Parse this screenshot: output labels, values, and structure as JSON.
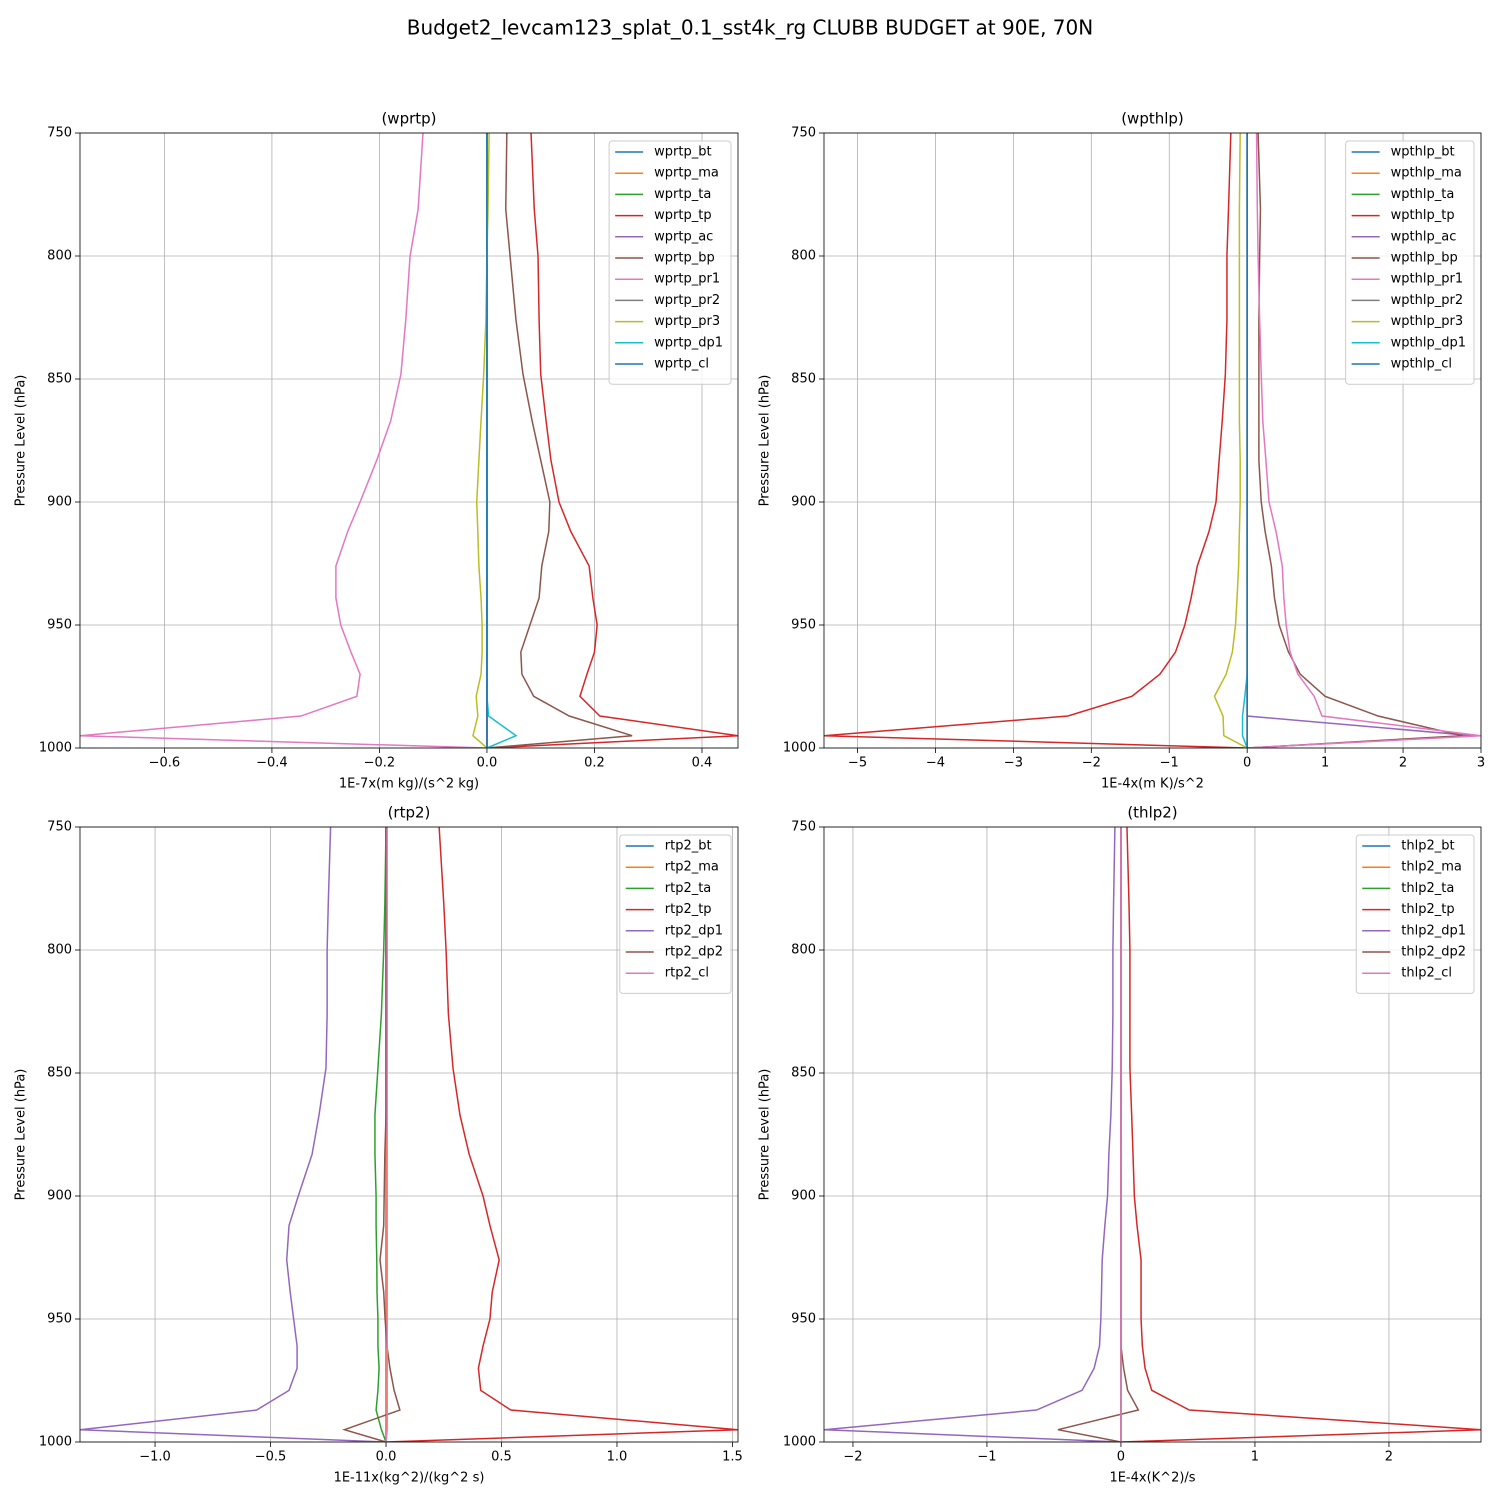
{
  "title": "Budget2_levcam123_splat_0.1_sst4k_rg CLUBB BUDGET at 90E, 70N",
  "chart_data": [
    {
      "type": "line",
      "title": "(wprtp)",
      "xlabel": "1E-7x(m kg)/(s^2 kg)",
      "ylabel": "Pressure Level (hPa)",
      "y": [
        750,
        781,
        800,
        826,
        848,
        867,
        883,
        900,
        912,
        926,
        939,
        950,
        961,
        970,
        979,
        987,
        995,
        1000
      ],
      "xlim": [
        -0.757,
        0.467
      ],
      "ylim": [
        750,
        1000
      ],
      "y_inverted": true,
      "grid": true,
      "legend": "upper right",
      "xticks": [
        {
          "value": -0.6,
          "label": "−0.6"
        },
        {
          "value": -0.4,
          "label": "−0.4"
        },
        {
          "value": -0.2,
          "label": "−0.2"
        },
        {
          "value": 0,
          "label": "0.0"
        },
        0.2,
        0.4
      ],
      "yticks": [
        750,
        800,
        850,
        900,
        950,
        1000
      ],
      "series": [
        {
          "name": "wprtp_bt",
          "color": "#1f77b4",
          "values": [
            0,
            0,
            0,
            0,
            0,
            0,
            0,
            0,
            0,
            0,
            0,
            0,
            0,
            0,
            0,
            0,
            0,
            0
          ]
        },
        {
          "name": "wprtp_ma",
          "color": "#ff7f0e",
          "values": [
            0,
            0,
            0,
            0,
            0,
            0,
            0,
            0,
            0,
            0,
            0,
            0,
            0,
            0,
            0,
            0,
            0,
            0
          ]
        },
        {
          "name": "wprtp_ta",
          "color": "#2ca02c",
          "values": [
            0,
            0,
            0,
            0,
            0,
            0,
            0,
            0,
            0,
            0,
            0,
            0,
            0,
            0,
            0,
            0,
            0,
            0
          ]
        },
        {
          "name": "wprtp_tp",
          "color": "#d62728",
          "values": [
            0.082,
            0.088,
            0.095,
            0.097,
            0.1,
            0.11,
            0.119,
            0.134,
            0.156,
            0.19,
            0.197,
            0.205,
            0.2,
            0.186,
            0.173,
            0.21,
            0.467,
            0
          ]
        },
        {
          "name": "wprtp_ac",
          "color": "#9467bd",
          "values": [
            0,
            0,
            0,
            0,
            0,
            0,
            0,
            0,
            0,
            0,
            0,
            0,
            0,
            0,
            0,
            0,
            0,
            0
          ]
        },
        {
          "name": "wprtp_bp",
          "color": "#8c564b",
          "values": [
            0.037,
            0.035,
            0.043,
            0.054,
            0.067,
            0.084,
            0.1,
            0.117,
            0.115,
            0.102,
            0.097,
            0.08,
            0.063,
            0.065,
            0.087,
            0.153,
            0.27,
            0
          ]
        },
        {
          "name": "wprtp_pr1",
          "color": "#e377c2",
          "values": [
            -0.119,
            -0.128,
            -0.143,
            -0.151,
            -0.16,
            -0.179,
            -0.205,
            -0.236,
            -0.259,
            -0.281,
            -0.281,
            -0.272,
            -0.253,
            -0.236,
            -0.242,
            -0.346,
            -0.757,
            0
          ]
        },
        {
          "name": "wprtp_pr2",
          "color": "#7f7f7f",
          "values": [
            0,
            0,
            0,
            0,
            0,
            0,
            0,
            0,
            0,
            0,
            0,
            0,
            0,
            0,
            0,
            0,
            0,
            0
          ]
        },
        {
          "name": "wprtp_pr3",
          "color": "#bcbd22",
          "values": [
            0.004,
            0.002,
            0,
            -0.002,
            -0.006,
            -0.011,
            -0.015,
            -0.019,
            -0.017,
            -0.015,
            -0.011,
            -0.009,
            -0.009,
            -0.011,
            -0.02,
            -0.017,
            -0.026,
            0
          ]
        },
        {
          "name": "wprtp_dp1",
          "color": "#17becf",
          "values": [
            0,
            0,
            0,
            0,
            0,
            0,
            0,
            0,
            0,
            0,
            0,
            0,
            0,
            0,
            0,
            0.003,
            0.054,
            0
          ]
        },
        {
          "name": "wprtp_cl",
          "color": "#1f77b4",
          "values": [
            0,
            0,
            0,
            0,
            0,
            0,
            0,
            0,
            0,
            0,
            0,
            0,
            0,
            0,
            0,
            0,
            0,
            0
          ]
        }
      ]
    },
    {
      "type": "line",
      "title": "(wpthlp)",
      "xlabel": "1E-4x(m K)/s^2",
      "ylabel": "Pressure Level (hPa)",
      "y": [
        750,
        781,
        800,
        826,
        848,
        867,
        883,
        900,
        912,
        926,
        939,
        950,
        961,
        970,
        979,
        987,
        995,
        1000
      ],
      "xlim": [
        -5.43,
        3.0
      ],
      "ylim": [
        750,
        1000
      ],
      "y_inverted": true,
      "grid": true,
      "legend": "upper right",
      "xticks": [
        {
          "value": -5,
          "label": "−5"
        },
        {
          "value": -4,
          "label": "−4"
        },
        {
          "value": -3,
          "label": "−3"
        },
        {
          "value": -2,
          "label": "−2"
        },
        {
          "value": -1,
          "label": "−1"
        },
        0,
        1,
        2,
        3
      ],
      "yticks": [
        750,
        800,
        850,
        900,
        950,
        1000
      ],
      "series": [
        {
          "name": "wpthlp_bt",
          "color": "#1f77b4",
          "values": [
            0,
            0,
            0,
            0,
            0,
            0,
            0,
            0,
            0,
            0,
            0,
            0,
            0,
            0,
            0,
            0,
            0,
            0
          ]
        },
        {
          "name": "wpthlp_ma",
          "color": "#ff7f0e",
          "values": [
            0,
            0,
            0,
            0,
            0,
            0,
            0,
            0,
            0,
            0,
            0,
            0,
            0,
            0,
            0,
            0,
            0,
            0
          ]
        },
        {
          "name": "wpthlp_ta",
          "color": "#2ca02c",
          "values": [
            0,
            0,
            0,
            0,
            0,
            0,
            0,
            0,
            0,
            0,
            0,
            0,
            0,
            0,
            0,
            0,
            0,
            0
          ]
        },
        {
          "name": "wpthlp_tp",
          "color": "#d62728",
          "values": [
            -0.21,
            -0.24,
            -0.26,
            -0.26,
            -0.28,
            -0.32,
            -0.36,
            -0.4,
            -0.49,
            -0.64,
            -0.72,
            -0.8,
            -0.92,
            -1.12,
            -1.48,
            -2.3,
            -5.43,
            0
          ]
        },
        {
          "name": "wpthlp_ac",
          "color": "#9467bd",
          "values": [
            0,
            0,
            0,
            0,
            0,
            0,
            0,
            0,
            0,
            0,
            0,
            0,
            0,
            0,
            0,
            0,
            2.9,
            0
          ]
        },
        {
          "name": "wpthlp_bp",
          "color": "#8c564b",
          "values": [
            0.14,
            0.17,
            0.16,
            0.15,
            0.15,
            0.15,
            0.15,
            0.18,
            0.23,
            0.31,
            0.35,
            0.41,
            0.53,
            0.68,
            1.0,
            1.68,
            2.76,
            0
          ]
        },
        {
          "name": "wpthlp_pr1",
          "color": "#e377c2",
          "values": [
            0.12,
            0.13,
            0.14,
            0.16,
            0.18,
            0.2,
            0.24,
            0.28,
            0.37,
            0.45,
            0.47,
            0.5,
            0.55,
            0.65,
            0.86,
            0.96,
            3.0,
            0
          ]
        },
        {
          "name": "wpthlp_pr2",
          "color": "#7f7f7f",
          "values": [
            0,
            0,
            0,
            0,
            0,
            0,
            0,
            0,
            0,
            0,
            0,
            0,
            0,
            0,
            0,
            0,
            0,
            0
          ]
        },
        {
          "name": "wpthlp_pr3",
          "color": "#bcbd22",
          "values": [
            -0.09,
            -0.1,
            -0.1,
            -0.1,
            -0.1,
            -0.1,
            -0.09,
            -0.09,
            -0.1,
            -0.11,
            -0.13,
            -0.15,
            -0.19,
            -0.27,
            -0.42,
            -0.31,
            -0.3,
            0
          ]
        },
        {
          "name": "wpthlp_dp1",
          "color": "#17becf",
          "values": [
            0,
            0,
            0,
            0,
            0,
            0,
            0,
            0,
            0,
            0,
            0,
            0,
            0,
            0,
            -0.03,
            -0.06,
            -0.06,
            0
          ]
        },
        {
          "name": "wpthlp_cl",
          "color": "#1f77b4",
          "values": [
            0,
            0,
            0,
            0,
            0,
            0,
            0,
            0,
            0,
            0,
            0,
            0,
            0,
            0,
            0,
            0,
            0,
            0
          ]
        }
      ]
    },
    {
      "type": "line",
      "title": "(rtp2)",
      "xlabel": "1E-11x(kg^2)/(kg^2 s)",
      "ylabel": "Pressure Level (hPa)",
      "y": [
        750,
        781,
        800,
        826,
        848,
        867,
        883,
        900,
        912,
        926,
        939,
        950,
        961,
        970,
        979,
        987,
        995,
        1000
      ],
      "xlim": [
        -1.325,
        1.524
      ],
      "ylim": [
        750,
        1000
      ],
      "y_inverted": true,
      "grid": true,
      "legend": "upper right",
      "xticks": [
        {
          "value": -1,
          "label": "−1.0"
        },
        {
          "value": -0.5,
          "label": "−0.5"
        },
        {
          "value": 0,
          "label": "0.0"
        },
        0.5,
        {
          "value": 1,
          "label": "1.0"
        },
        1.5
      ],
      "yticks": [
        750,
        800,
        850,
        900,
        950,
        1000
      ],
      "series": [
        {
          "name": "rtp2_bt",
          "color": "#1f77b4",
          "values": [
            0,
            0,
            0,
            0,
            0,
            0,
            0,
            0,
            0,
            0,
            0,
            0,
            0,
            0,
            0,
            0,
            0,
            0
          ]
        },
        {
          "name": "rtp2_ma",
          "color": "#ff7f0e",
          "values": [
            0,
            0,
            0,
            0,
            0,
            0,
            0,
            0,
            0,
            0,
            0,
            0,
            0,
            0,
            0,
            0,
            0,
            0
          ]
        },
        {
          "name": "rtp2_ta",
          "color": "#2ca02c",
          "values": [
            0,
            -0.005,
            -0.01,
            -0.02,
            -0.035,
            -0.048,
            -0.048,
            -0.043,
            -0.043,
            -0.04,
            -0.039,
            -0.035,
            -0.035,
            -0.03,
            -0.035,
            -0.043,
            -0.02,
            0
          ]
        },
        {
          "name": "rtp2_tp",
          "color": "#d62728",
          "values": [
            0.23,
            0.25,
            0.26,
            0.27,
            0.29,
            0.32,
            0.36,
            0.42,
            0.45,
            0.49,
            0.46,
            0.45,
            0.42,
            0.4,
            0.41,
            0.54,
            1.524,
            0
          ]
        },
        {
          "name": "rtp2_dp1",
          "color": "#9467bd",
          "values": [
            -0.24,
            -0.25,
            -0.255,
            -0.255,
            -0.26,
            -0.29,
            -0.32,
            -0.38,
            -0.42,
            -0.43,
            -0.415,
            -0.4,
            -0.385,
            -0.385,
            -0.42,
            -0.56,
            -1.325,
            0
          ]
        },
        {
          "name": "rtp2_dp2",
          "color": "#8c564b",
          "values": [
            0,
            0,
            0,
            0,
            0,
            0,
            -0.005,
            -0.008,
            -0.01,
            -0.026,
            -0.01,
            -0.004,
            0.004,
            0.017,
            0.035,
            0.06,
            -0.18,
            0
          ]
        },
        {
          "name": "rtp2_cl",
          "color": "#e377c2",
          "values": [
            0.005,
            0.005,
            0.005,
            0.005,
            0.005,
            0.005,
            0.005,
            0.005,
            0.005,
            0.005,
            0.005,
            0.005,
            0.005,
            0.005,
            0.005,
            0.005,
            0.005,
            0
          ]
        }
      ]
    },
    {
      "type": "line",
      "title": "(thlp2)",
      "xlabel": "1E-4x(K^2)/s",
      "ylabel": "Pressure Level (hPa)",
      "y": [
        750,
        781,
        800,
        826,
        848,
        867,
        883,
        900,
        912,
        926,
        939,
        950,
        961,
        970,
        979,
        987,
        995,
        1000
      ],
      "xlim": [
        -2.216,
        2.687
      ],
      "ylim": [
        750,
        1000
      ],
      "y_inverted": true,
      "grid": true,
      "legend": "upper right",
      "xticks": [
        {
          "value": -2,
          "label": "−2"
        },
        {
          "value": -1,
          "label": "−1"
        },
        0,
        1,
        2
      ],
      "yticks": [
        750,
        800,
        850,
        900,
        950,
        1000
      ],
      "series": [
        {
          "name": "thlp2_bt",
          "color": "#1f77b4",
          "values": [
            0,
            0,
            0,
            0,
            0,
            0,
            0,
            0,
            0,
            0,
            0,
            0,
            0,
            0,
            0,
            0,
            0,
            0
          ]
        },
        {
          "name": "thlp2_ma",
          "color": "#ff7f0e",
          "values": [
            0,
            0,
            0,
            0,
            0,
            0,
            0,
            0,
            0,
            0,
            0,
            0,
            0,
            0,
            0,
            0,
            0,
            0
          ]
        },
        {
          "name": "thlp2_ta",
          "color": "#2ca02c",
          "values": [
            0,
            0,
            0,
            0,
            0,
            0,
            0,
            0,
            0,
            0,
            0,
            0,
            0,
            0,
            0,
            0,
            0,
            0
          ]
        },
        {
          "name": "thlp2_tp",
          "color": "#d62728",
          "values": [
            0.045,
            0.06,
            0.067,
            0.067,
            0.067,
            0.08,
            0.09,
            0.1,
            0.12,
            0.15,
            0.15,
            0.15,
            0.16,
            0.18,
            0.23,
            0.51,
            2.687,
            0
          ]
        },
        {
          "name": "thlp2_dp1",
          "color": "#9467bd",
          "values": [
            -0.045,
            -0.055,
            -0.06,
            -0.06,
            -0.065,
            -0.075,
            -0.09,
            -0.1,
            -0.12,
            -0.14,
            -0.145,
            -0.15,
            -0.16,
            -0.2,
            -0.29,
            -0.63,
            -2.216,
            0
          ]
        },
        {
          "name": "thlp2_dp2",
          "color": "#8c564b",
          "values": [
            0,
            0,
            0,
            0,
            0,
            0,
            0,
            0,
            0,
            0,
            0,
            0,
            0,
            0.02,
            0.05,
            0.13,
            -0.47,
            0
          ]
        },
        {
          "name": "thlp2_cl",
          "color": "#e377c2",
          "values": [
            0,
            0,
            0,
            0,
            0,
            0,
            0,
            0,
            0,
            0,
            0,
            0,
            0,
            0,
            0,
            0,
            0,
            0
          ]
        }
      ]
    }
  ]
}
